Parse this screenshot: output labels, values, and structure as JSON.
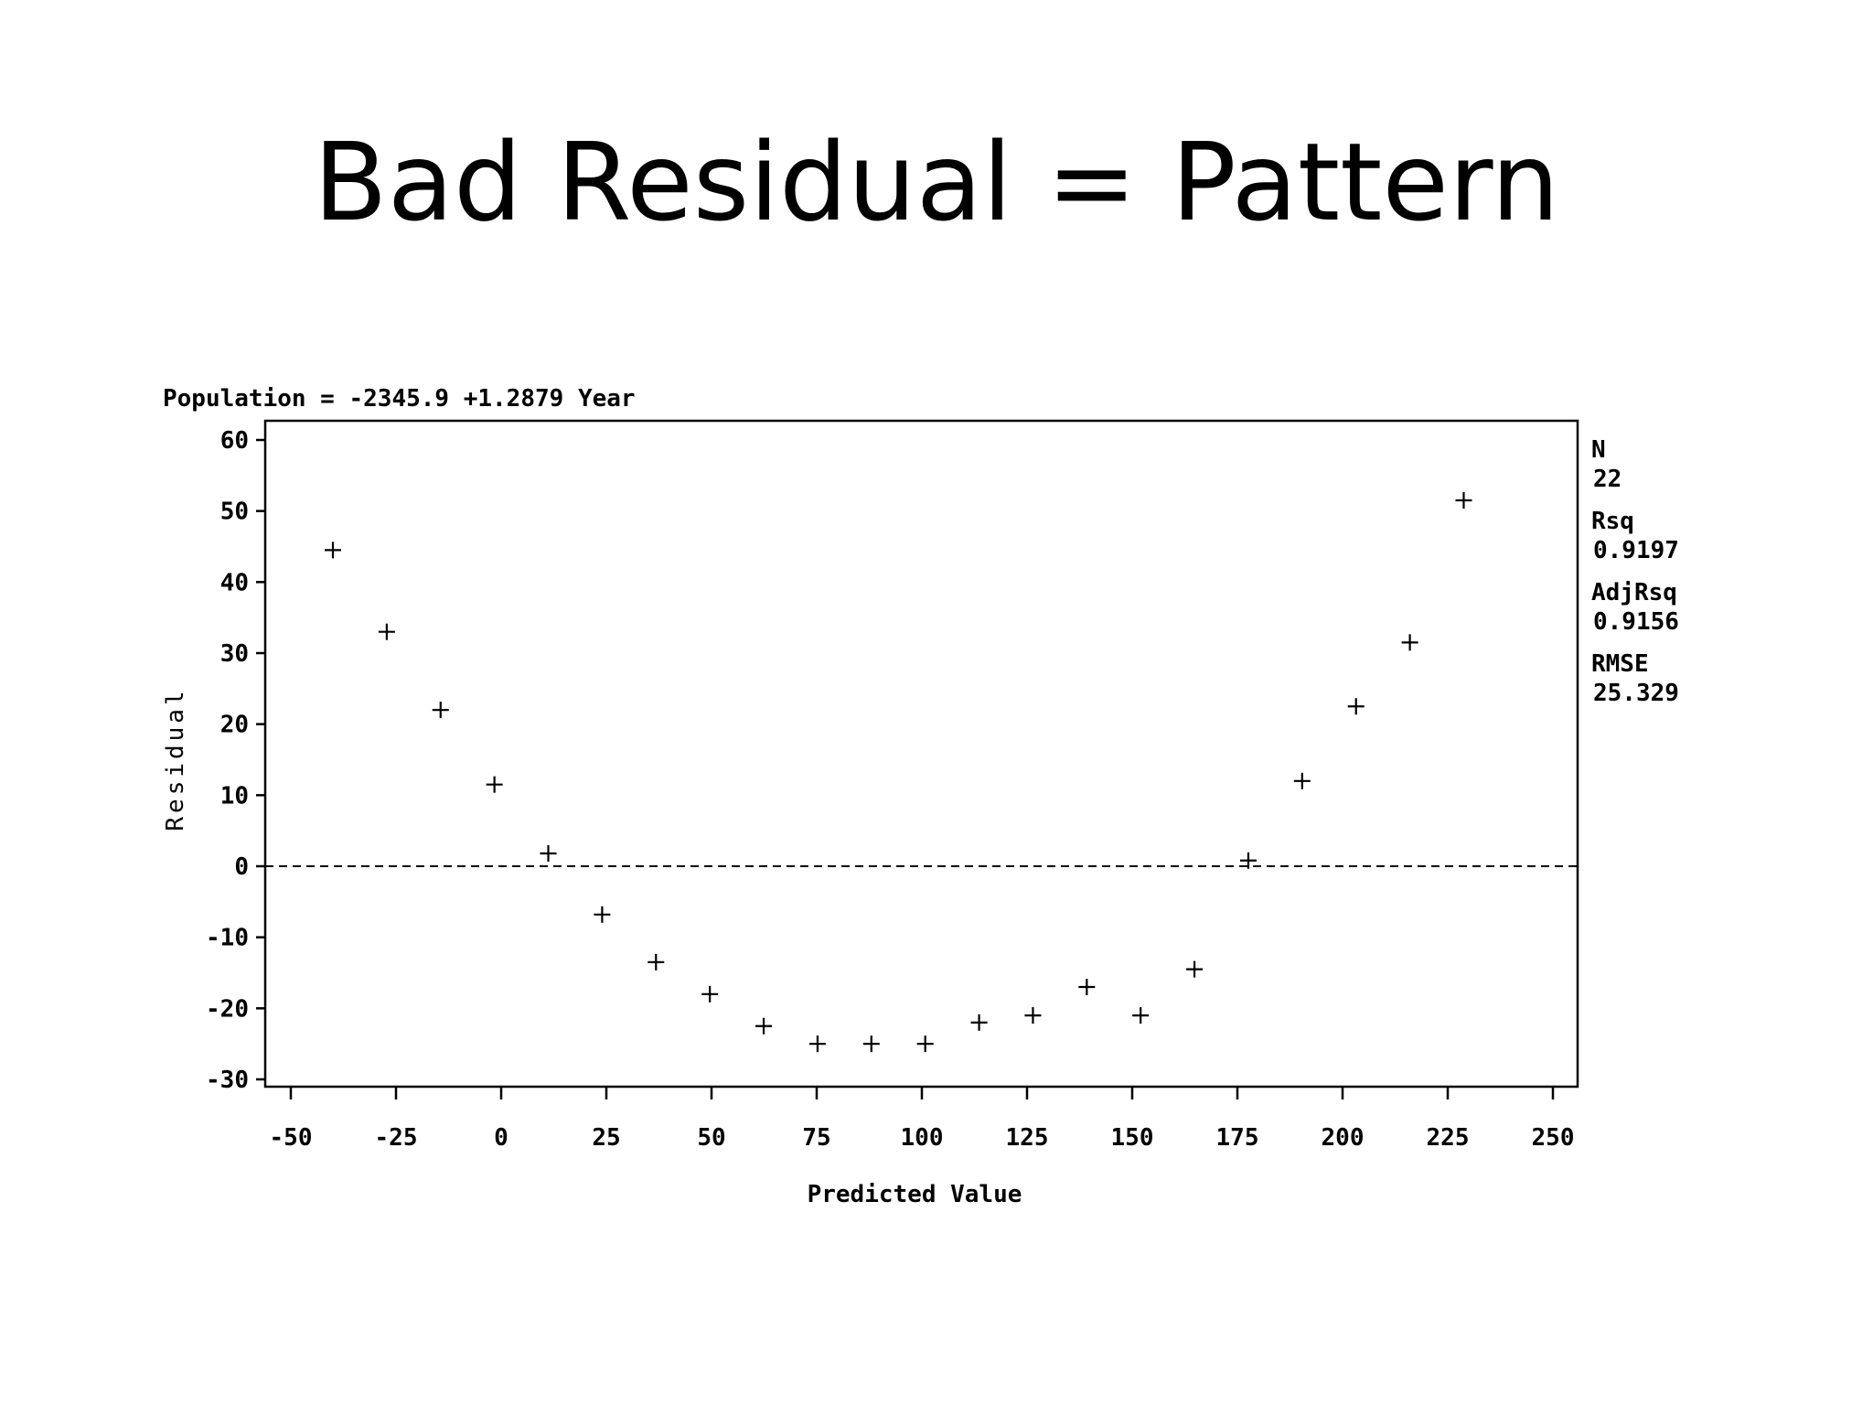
{
  "slide": {
    "title": "Bad Residual = Pattern"
  },
  "chart_data": {
    "type": "scatter",
    "title": "Population = -2345.9 +1.2879 Year",
    "xlabel": "Predicted Value",
    "ylabel": "Residual",
    "xlim": [
      -55,
      255
    ],
    "ylim": [
      -31,
      62
    ],
    "xticks": [
      -50,
      -25,
      0,
      25,
      50,
      75,
      100,
      125,
      150,
      175,
      200,
      225,
      250
    ],
    "yticks": [
      60,
      50,
      40,
      30,
      20,
      10,
      0,
      -10,
      -20,
      -30
    ],
    "reference_line": {
      "y": 0,
      "style": "dashed"
    },
    "marker": "plus",
    "points": [
      {
        "x": -40,
        "y": 44.5
      },
      {
        "x": -27.2,
        "y": 33
      },
      {
        "x": -14.4,
        "y": 22
      },
      {
        "x": -1.6,
        "y": 11.5
      },
      {
        "x": 11.2,
        "y": 1.8
      },
      {
        "x": 24,
        "y": -6.8
      },
      {
        "x": 36.8,
        "y": -13.5
      },
      {
        "x": 49.6,
        "y": -18
      },
      {
        "x": 62.4,
        "y": -22.5
      },
      {
        "x": 75.2,
        "y": -25
      },
      {
        "x": 88,
        "y": -25
      },
      {
        "x": 100.8,
        "y": -25
      },
      {
        "x": 113.6,
        "y": -22
      },
      {
        "x": 126.4,
        "y": -21
      },
      {
        "x": 139.2,
        "y": -17
      },
      {
        "x": 152,
        "y": -21
      },
      {
        "x": 164.8,
        "y": -14.5
      },
      {
        "x": 177.6,
        "y": 0.8
      },
      {
        "x": 190.4,
        "y": 12
      },
      {
        "x": 203.2,
        "y": 22.5
      },
      {
        "x": 216,
        "y": 31.5
      },
      {
        "x": 228.8,
        "y": 51.5
      }
    ],
    "stats": [
      {
        "label": "N",
        "value": "22"
      },
      {
        "label": "Rsq",
        "value": "0.9197"
      },
      {
        "label": "AdjRsq",
        "value": "0.9156"
      },
      {
        "label": "RMSE",
        "value": "25.329"
      }
    ],
    "grid": false,
    "legend": "none"
  }
}
